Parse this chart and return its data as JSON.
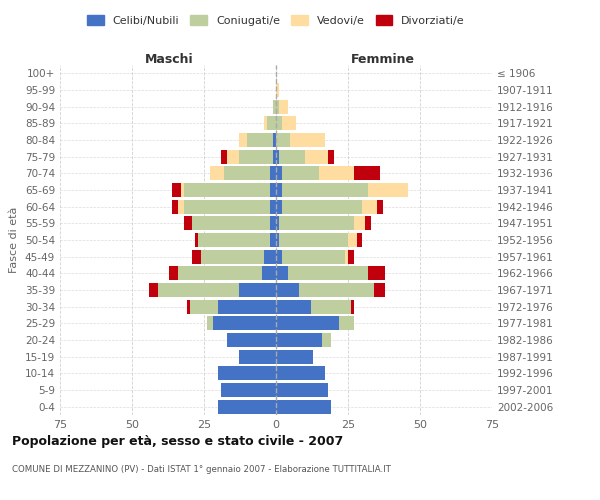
{
  "age_groups": [
    "0-4",
    "5-9",
    "10-14",
    "15-19",
    "20-24",
    "25-29",
    "30-34",
    "35-39",
    "40-44",
    "45-49",
    "50-54",
    "55-59",
    "60-64",
    "65-69",
    "70-74",
    "75-79",
    "80-84",
    "85-89",
    "90-94",
    "95-99",
    "100+"
  ],
  "birth_years": [
    "2002-2006",
    "1997-2001",
    "1992-1996",
    "1987-1991",
    "1982-1986",
    "1977-1981",
    "1972-1976",
    "1967-1971",
    "1962-1966",
    "1957-1961",
    "1952-1956",
    "1947-1951",
    "1942-1946",
    "1937-1941",
    "1932-1936",
    "1927-1931",
    "1922-1926",
    "1917-1921",
    "1912-1916",
    "1907-1911",
    "≤ 1906"
  ],
  "male": {
    "celibi": [
      20,
      19,
      20,
      13,
      17,
      22,
      20,
      13,
      5,
      4,
      2,
      2,
      2,
      2,
      2,
      1,
      1,
      0,
      0,
      0,
      0
    ],
    "coniugati": [
      0,
      0,
      0,
      0,
      0,
      2,
      10,
      28,
      29,
      22,
      25,
      27,
      30,
      30,
      16,
      12,
      9,
      3,
      1,
      0,
      0
    ],
    "vedovi": [
      0,
      0,
      0,
      0,
      0,
      0,
      0,
      0,
      0,
      0,
      0,
      0,
      2,
      1,
      5,
      4,
      3,
      1,
      0,
      0,
      0
    ],
    "divorziati": [
      0,
      0,
      0,
      0,
      0,
      0,
      1,
      3,
      3,
      3,
      1,
      3,
      2,
      3,
      0,
      2,
      0,
      0,
      0,
      0,
      0
    ]
  },
  "female": {
    "nubili": [
      19,
      18,
      17,
      13,
      16,
      22,
      12,
      8,
      4,
      2,
      1,
      1,
      2,
      2,
      2,
      1,
      0,
      0,
      0,
      0,
      0
    ],
    "coniugate": [
      0,
      0,
      0,
      0,
      3,
      5,
      14,
      26,
      28,
      22,
      24,
      26,
      28,
      30,
      13,
      9,
      5,
      2,
      1,
      0,
      0
    ],
    "vedove": [
      0,
      0,
      0,
      0,
      0,
      0,
      0,
      0,
      0,
      1,
      3,
      4,
      5,
      14,
      12,
      8,
      12,
      5,
      3,
      1,
      0
    ],
    "divorziate": [
      0,
      0,
      0,
      0,
      0,
      0,
      1,
      4,
      6,
      2,
      2,
      2,
      2,
      0,
      9,
      2,
      0,
      0,
      0,
      0,
      0
    ]
  },
  "colors": {
    "celibi_nubili": "#4472C4",
    "coniugati_e": "#BFCE9E",
    "vedovi_e": "#FFDCA0",
    "divorziati_e": "#C0000C"
  },
  "xlim": 75,
  "title": "Popolazione per età, sesso e stato civile - 2007",
  "subtitle": "COMUNE DI MEZZANINO (PV) - Dati ISTAT 1° gennaio 2007 - Elaborazione TUTTITALIA.IT",
  "ylabel_left": "Fasce di età",
  "xlabel_left": "Maschi",
  "xlabel_right": "Femmine",
  "legend_labels": [
    "Celibi/Nubili",
    "Coniugati/e",
    "Vedovi/e",
    "Divorziati/e"
  ],
  "background_color": "#ffffff",
  "grid_color": "#cccccc"
}
